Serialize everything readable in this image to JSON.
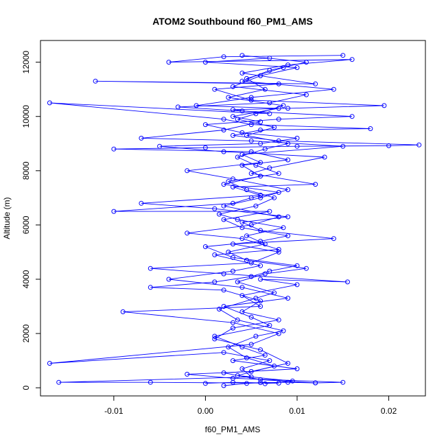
{
  "chart_data": {
    "type": "scatter",
    "title": "ATOM2 Southbound f60_PM1_AMS",
    "xlabel": "f60_PM1_AMS",
    "ylabel": "Altitude (m)",
    "xlim": [
      -0.018,
      0.024
    ],
    "ylim": [
      -300,
      12800
    ],
    "x_ticks": [
      {
        "value": -0.01,
        "label": "-0.01"
      },
      {
        "value": 0.0,
        "label": "0.00"
      },
      {
        "value": 0.01,
        "label": "0.01"
      },
      {
        "value": 0.02,
        "label": "0.02"
      }
    ],
    "y_ticks": [
      {
        "value": 0,
        "label": "0"
      },
      {
        "value": 2000,
        "label": "2000"
      },
      {
        "value": 4000,
        "label": "4000"
      },
      {
        "value": 6000,
        "label": "6000"
      },
      {
        "value": 8000,
        "label": "8000"
      },
      {
        "value": 10000,
        "label": "10000"
      },
      {
        "value": 12000,
        "label": "12000"
      }
    ],
    "marker": "open-circle",
    "connected": true,
    "grid": false,
    "color": "#0000ff",
    "series": [
      {
        "points": [
          [
            0.002,
            80
          ],
          [
            0.0045,
            160
          ],
          [
            0.006,
            190
          ],
          [
            0.009,
            200
          ],
          [
            0.012,
            180
          ],
          [
            0.015,
            200
          ],
          [
            0.003,
            350
          ],
          [
            -0.002,
            500
          ],
          [
            0.005,
            600
          ],
          [
            0.009,
            900
          ],
          [
            0.006,
            1400
          ],
          [
            0.001,
            1800
          ],
          [
            0.003,
            2200
          ],
          [
            0.008,
            2500
          ],
          [
            0.004,
            2800
          ],
          [
            0.006,
            3200
          ],
          [
            0.002,
            3600
          ],
          [
            -0.006,
            3700
          ],
          [
            0.001,
            3900
          ],
          [
            0.005,
            4100
          ],
          [
            0.007,
            4300
          ],
          [
            0.01,
            4500
          ],
          [
            0.003,
            4800
          ],
          [
            0.0,
            5200
          ],
          [
            0.006,
            5400
          ],
          [
            0.009,
            5600
          ],
          [
            0.004,
            5900
          ],
          [
            0.002,
            6200
          ],
          [
            0.007,
            6500
          ],
          [
            -0.01,
            6500
          ],
          [
            0.003,
            6800
          ],
          [
            0.005,
            7000
          ],
          [
            0.008,
            7200
          ],
          [
            0.002,
            7500
          ],
          [
            0.006,
            7800
          ],
          [
            0.004,
            8200
          ],
          [
            0.009,
            8400
          ],
          [
            0.005,
            8700
          ],
          [
            -0.01,
            8800
          ],
          [
            0.0,
            8850
          ],
          [
            0.01,
            8900
          ],
          [
            0.02,
            8920
          ],
          [
            0.0233,
            8950
          ],
          [
            0.008,
            9100
          ],
          [
            0.003,
            9300
          ],
          [
            0.006,
            9500
          ],
          [
            0.018,
            9550
          ],
          [
            0.005,
            9700
          ],
          [
            0.002,
            9900
          ],
          [
            -0.017,
            10500
          ],
          [
            0.007,
            10100
          ],
          [
            0.003,
            10250
          ],
          [
            0.009,
            10300
          ],
          [
            0.0195,
            10400
          ],
          [
            0.005,
            10600
          ],
          [
            0.001,
            11000
          ],
          [
            0.008,
            11200
          ],
          [
            -0.012,
            11300
          ],
          [
            0.012,
            11200
          ],
          [
            0.004,
            11600
          ],
          [
            0.009,
            11900
          ],
          [
            0.016,
            12100
          ],
          [
            -0.004,
            12000
          ],
          [
            0.002,
            12200
          ],
          [
            0.015,
            12250
          ]
        ]
      },
      {
        "points": [
          [
            0.0,
            160
          ],
          [
            0.003,
            200
          ],
          [
            0.008,
            170
          ],
          [
            -0.006,
            200
          ],
          [
            -0.016,
            200
          ],
          [
            0.005,
            400
          ],
          [
            0.004,
            700
          ],
          [
            0.007,
            1000
          ],
          [
            0.002,
            1300
          ],
          [
            -0.017,
            900
          ],
          [
            0.005,
            1600
          ],
          [
            0.008,
            2000
          ],
          [
            0.003,
            2400
          ],
          [
            -0.009,
            2800
          ],
          [
            0.006,
            3000
          ],
          [
            0.004,
            3400
          ],
          [
            0.01,
            3800
          ],
          [
            0.006,
            4000
          ],
          [
            0.0155,
            3900
          ],
          [
            0.002,
            4200
          ],
          [
            -0.006,
            4400
          ],
          [
            0.005,
            4600
          ],
          [
            0.008,
            5000
          ],
          [
            0.003,
            5300
          ],
          [
            0.014,
            5500
          ],
          [
            0.006,
            5800
          ],
          [
            0.004,
            6100
          ],
          [
            0.009,
            6300
          ],
          [
            0.001,
            6600
          ],
          [
            -0.007,
            6800
          ],
          [
            0.006,
            7100
          ],
          [
            0.003,
            7400
          ],
          [
            0.012,
            7500
          ],
          [
            0.005,
            7900
          ],
          [
            0.007,
            8100
          ],
          [
            0.013,
            8500
          ],
          [
            0.002,
            8700
          ],
          [
            -0.005,
            8900
          ],
          [
            0.006,
            9000
          ],
          [
            0.01,
            9200
          ],
          [
            0.004,
            9400
          ],
          [
            0.0,
            9700
          ],
          [
            0.008,
            9900
          ],
          [
            0.016,
            10000
          ],
          [
            0.004,
            10200
          ],
          [
            -0.003,
            10350
          ],
          [
            0.007,
            10500
          ],
          [
            0.011,
            10800
          ],
          [
            0.003,
            11100
          ],
          [
            0.006,
            11500
          ],
          [
            0.01,
            11800
          ],
          [
            0.0,
            12000
          ],
          [
            0.007,
            12150
          ]
        ]
      },
      {
        "points": [
          [
            0.012,
            180
          ],
          [
            0.006,
            300
          ],
          [
            0.002,
            550
          ],
          [
            0.01,
            700
          ],
          [
            0.003,
            1000
          ],
          [
            0.0065,
            1200
          ],
          [
            0.004,
            1500
          ],
          [
            0.001,
            1900
          ],
          [
            0.007,
            2300
          ],
          [
            0.005,
            2600
          ],
          [
            0.002,
            3000
          ],
          [
            0.009,
            3300
          ],
          [
            0.004,
            3700
          ],
          [
            -0.004,
            4000
          ],
          [
            0.003,
            4300
          ],
          [
            0.006,
            4500
          ],
          [
            0.001,
            4900
          ],
          [
            0.008,
            5100
          ],
          [
            0.004,
            5500
          ],
          [
            -0.002,
            5700
          ],
          [
            0.005,
            6000
          ],
          [
            0.008,
            6300
          ],
          [
            0.002,
            6700
          ],
          [
            0.006,
            7000
          ],
          [
            0.009,
            7300
          ],
          [
            0.003,
            7700
          ],
          [
            -0.002,
            8000
          ],
          [
            0.006,
            8300
          ],
          [
            0.004,
            8600
          ],
          [
            0.015,
            8900
          ],
          [
            0.005,
            9100
          ],
          [
            -0.007,
            9200
          ],
          [
            0.002,
            9500
          ],
          [
            0.006,
            9800
          ],
          [
            0.003,
            10000
          ],
          [
            0.008,
            10300
          ],
          [
            -0.001,
            10400
          ],
          [
            0.005,
            10700
          ],
          [
            0.014,
            11000
          ],
          [
            0.004,
            11300
          ],
          [
            0.007,
            11700
          ],
          [
            0.011,
            12000
          ],
          [
            0.004,
            12250
          ]
        ]
      },
      {
        "points": [
          [
            0.0065,
            150
          ],
          [
            0.0095,
            250
          ],
          [
            0.0035,
            450
          ],
          [
            0.0075,
            800
          ],
          [
            0.0045,
            1100
          ],
          [
            0.0025,
            1500
          ],
          [
            0.0055,
            1900
          ],
          [
            0.0085,
            2100
          ],
          [
            0.0035,
            2500
          ],
          [
            0.0015,
            2900
          ],
          [
            0.0055,
            3300
          ],
          [
            0.0075,
            3500
          ],
          [
            0.0035,
            3900
          ],
          [
            0.0065,
            4200
          ],
          [
            0.011,
            4400
          ],
          [
            0.0045,
            4700
          ],
          [
            0.0025,
            5000
          ],
          [
            0.0065,
            5300
          ],
          [
            0.0045,
            5600
          ],
          [
            0.0085,
            5900
          ],
          [
            0.0035,
            6200
          ],
          [
            0.0015,
            6400
          ],
          [
            0.0055,
            6700
          ],
          [
            0.0075,
            7000
          ],
          [
            0.0045,
            7300
          ],
          [
            0.0025,
            7600
          ],
          [
            0.008,
            7900
          ],
          [
            0.0055,
            8200
          ],
          [
            0.0035,
            8500
          ],
          [
            0.0065,
            8800
          ],
          [
            0.009,
            9000
          ],
          [
            0.0045,
            9300
          ],
          [
            0.0075,
            9600
          ],
          [
            0.0035,
            9900
          ],
          [
            0.0055,
            10100
          ],
          [
            0.0085,
            10400
          ],
          [
            0.0025,
            10700
          ],
          [
            0.0065,
            11000
          ],
          [
            0.0045,
            11400
          ],
          [
            0.0085,
            11800
          ]
        ]
      }
    ]
  }
}
